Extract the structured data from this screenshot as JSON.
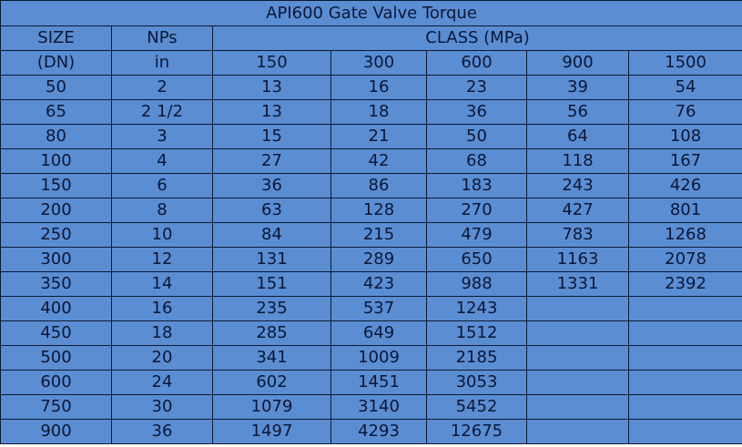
{
  "title": "API600 Gate  Valve Torque",
  "header": {
    "size_label": "SIZE",
    "nps_label": "NPs",
    "class_label": "CLASS  (MPa)"
  },
  "subheader": {
    "size_unit": "(DN)",
    "nps_unit": "in",
    "classes": [
      "150",
      "300",
      "600",
      "900",
      "1500"
    ]
  },
  "rows": [
    [
      "50",
      "2",
      "13",
      "16",
      "23",
      "39",
      "54"
    ],
    [
      "65",
      "2 1/2",
      "13",
      "18",
      "36",
      "56",
      "76"
    ],
    [
      "80",
      "3",
      "15",
      "21",
      "50",
      "64",
      "108"
    ],
    [
      "100",
      "4",
      "27",
      "42",
      "68",
      "118",
      "167"
    ],
    [
      "150",
      "6",
      "36",
      "86",
      "183",
      "243",
      "426"
    ],
    [
      "200",
      "8",
      "63",
      "128",
      "270",
      "427",
      "801"
    ],
    [
      "250",
      "10",
      "84",
      "215",
      "479",
      "783",
      "1268"
    ],
    [
      "300",
      "12",
      "131",
      "289",
      "650",
      "1163",
      "2078"
    ],
    [
      "350",
      "14",
      "151",
      "423",
      "988",
      "1331",
      "2392"
    ],
    [
      "400",
      "16",
      "235",
      "537",
      "1243",
      "",
      ""
    ],
    [
      "450",
      "18",
      "285",
      "649",
      "1512",
      "",
      ""
    ],
    [
      "500",
      "20",
      "341",
      "1009",
      "2185",
      "",
      ""
    ],
    [
      "600",
      "24",
      "602",
      "1451",
      "3053",
      "",
      ""
    ],
    [
      "750",
      "30",
      "1079",
      "3140",
      "5452",
      "",
      ""
    ],
    [
      "900",
      "36",
      "1497",
      "4293",
      "12675",
      "",
      ""
    ]
  ]
}
